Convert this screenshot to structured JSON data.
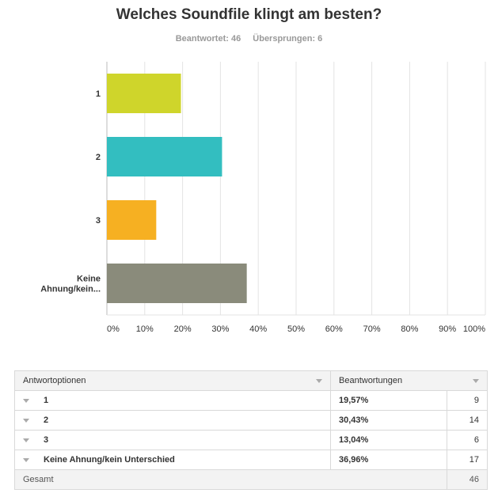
{
  "header": {
    "title": "Welches Soundfile klingt am besten?",
    "answered": "Beantwortet: 46",
    "skipped": "Übersprungen: 6"
  },
  "chart_data": {
    "type": "bar",
    "orientation": "horizontal",
    "categories": [
      "1",
      "2",
      "3",
      "Keine Ahnung/kein Unterschied"
    ],
    "category_labels_display": [
      [
        "1"
      ],
      [
        "2"
      ],
      [
        "3"
      ],
      [
        "Keine",
        "Ahnung/kein..."
      ]
    ],
    "values": [
      19.57,
      30.43,
      13.04,
      36.96
    ],
    "colors": [
      "#cfd52b",
      "#33bec0",
      "#f6b022",
      "#8a8b7b"
    ],
    "xlim": [
      0,
      100
    ],
    "xticks": [
      "0%",
      "10%",
      "20%",
      "30%",
      "40%",
      "50%",
      "60%",
      "70%",
      "80%",
      "90%",
      "100%"
    ],
    "grid": true
  },
  "table": {
    "headers": [
      "Antwortoptionen",
      "Beantwortungen"
    ],
    "rows": [
      {
        "option": "1",
        "percent": "19,57%",
        "count": "9"
      },
      {
        "option": "2",
        "percent": "30,43%",
        "count": "14"
      },
      {
        "option": "3",
        "percent": "13,04%",
        "count": "6"
      },
      {
        "option": "Keine Ahnung/kein Unterschied",
        "percent": "36,96%",
        "count": "17"
      }
    ],
    "total_label": "Gesamt",
    "total_count": "46"
  }
}
